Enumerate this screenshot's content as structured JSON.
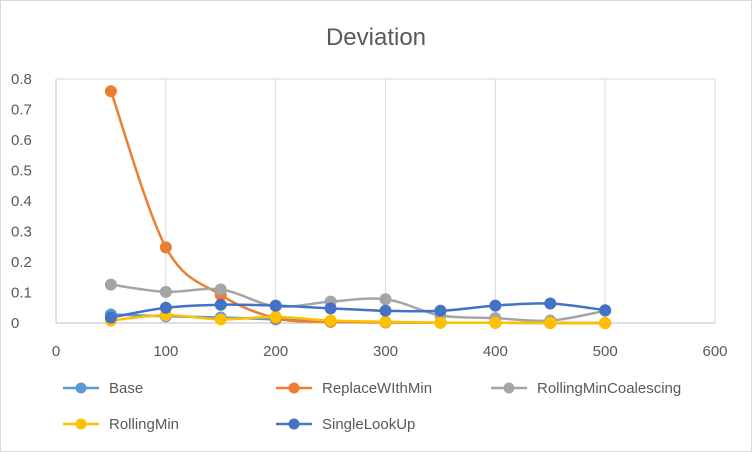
{
  "chart_data": {
    "type": "line",
    "title": "Deviation",
    "xlabel": "",
    "ylabel": "",
    "xlim": [
      0,
      600
    ],
    "ylim": [
      0,
      0.8
    ],
    "x_ticks": [
      "0",
      "100",
      "200",
      "300",
      "400",
      "500",
      "600"
    ],
    "y_ticks": [
      "0",
      "0.1",
      "0.2",
      "0.3",
      "0.4",
      "0.5",
      "0.6",
      "0.7",
      "0.8"
    ],
    "x_tick_values": [
      0,
      100,
      200,
      300,
      400,
      500,
      600
    ],
    "y_tick_values": [
      0,
      0.1,
      0.2,
      0.3,
      0.4,
      0.5,
      0.6,
      0.7,
      0.8
    ],
    "grid": "vertical",
    "legend_position": "bottom",
    "smooth": true,
    "series": [
      {
        "name": "Base",
        "color": "#5b9bd5",
        "x": [
          50,
          100,
          150,
          200,
          250,
          300,
          350,
          400,
          450,
          500
        ],
        "y": [
          0.028,
          0.022,
          0.018,
          0.012,
          0.004,
          0.002,
          0.001,
          0.001,
          0.0,
          0.0
        ]
      },
      {
        "name": "ReplaceWIthMin",
        "color": "#ed7d31",
        "x": [
          50,
          100,
          150,
          200,
          250,
          300,
          350,
          400,
          450,
          500
        ],
        "y": [
          0.76,
          0.248,
          0.092,
          0.016,
          0.004,
          0.002,
          0.001,
          0.001,
          0.0,
          0.0
        ]
      },
      {
        "name": "RollingMinCoalescing",
        "color": "#a5a5a5",
        "x": [
          50,
          100,
          150,
          200,
          250,
          300,
          350,
          400,
          450,
          500
        ],
        "y": [
          0.126,
          0.102,
          0.11,
          0.055,
          0.07,
          0.078,
          0.025,
          0.016,
          0.008,
          0.04
        ]
      },
      {
        "name": "RollingMin",
        "color": "#ffc000",
        "x": [
          50,
          100,
          150,
          200,
          250,
          300,
          350,
          400,
          450,
          500
        ],
        "y": [
          0.008,
          0.026,
          0.012,
          0.02,
          0.008,
          0.004,
          0.001,
          0.001,
          0.0,
          0.0
        ]
      },
      {
        "name": "SingleLookUp",
        "color": "#4472c4",
        "x": [
          50,
          100,
          150,
          200,
          250,
          300,
          350,
          400,
          450,
          500
        ],
        "y": [
          0.018,
          0.05,
          0.06,
          0.057,
          0.048,
          0.04,
          0.04,
          0.057,
          0.064,
          0.042
        ]
      }
    ]
  }
}
